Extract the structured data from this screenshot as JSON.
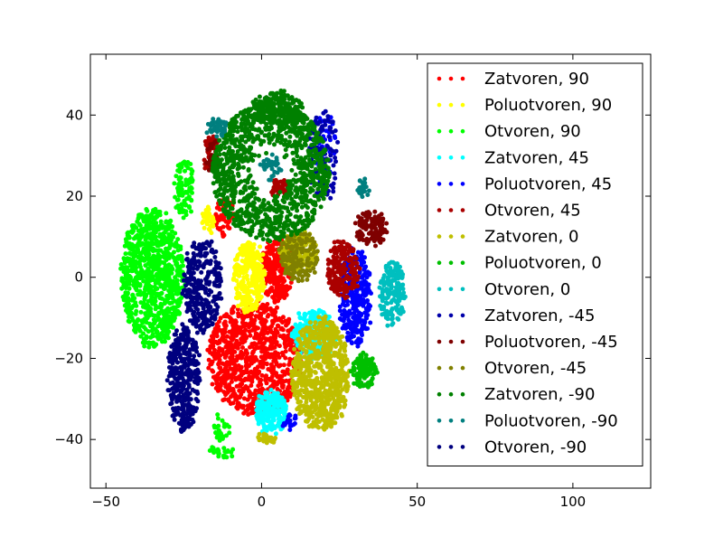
{
  "chart_data": {
    "type": "scatter",
    "title": "",
    "xlabel": "",
    "ylabel": "",
    "xlim": [
      -55,
      125
    ],
    "ylim": [
      -52,
      55
    ],
    "x_ticks": [
      -50,
      0,
      50,
      100
    ],
    "y_ticks": [
      -40,
      -20,
      0,
      20,
      40
    ],
    "x_tick_labels": [
      "−50",
      "0",
      "50",
      "100"
    ],
    "y_tick_labels": [
      "−40",
      "−20",
      "0",
      "20",
      "40"
    ],
    "grid": false,
    "legend_position": "upper right",
    "series": [
      {
        "name": "Zatvoren, 90",
        "color": "#ff0000",
        "clusters": [
          {
            "cx": -2,
            "cy": -20,
            "rx": 15,
            "ry": 14,
            "n": 900
          },
          {
            "cx": 5,
            "cy": 2,
            "rx": 5,
            "ry": 8,
            "n": 250
          },
          {
            "cx": -12,
            "cy": 15,
            "rx": 3,
            "ry": 5,
            "n": 60
          }
        ]
      },
      {
        "name": "Poluotvoren, 90",
        "color": "#ffff00",
        "clusters": [
          {
            "cx": -4,
            "cy": 0,
            "rx": 5,
            "ry": 9,
            "n": 300
          },
          {
            "cx": -17,
            "cy": 14,
            "rx": 2,
            "ry": 3,
            "n": 40
          }
        ]
      },
      {
        "name": "Otvoren, 90",
        "color": "#00ff00",
        "clusters": [
          {
            "cx": -35,
            "cy": 0,
            "rx": 10,
            "ry": 17,
            "n": 900
          },
          {
            "cx": -25,
            "cy": 22,
            "rx": 3,
            "ry": 7,
            "n": 100
          },
          {
            "cx": -13,
            "cy": -37,
            "rx": 3,
            "ry": 3,
            "n": 30
          },
          {
            "cx": -13,
            "cy": -43,
            "rx": 4,
            "ry": 1,
            "n": 25
          }
        ]
      },
      {
        "name": "Zatvoren, 45",
        "color": "#00ffff",
        "clusters": [
          {
            "cx": 3,
            "cy": -33,
            "rx": 5,
            "ry": 5,
            "n": 200
          },
          {
            "cx": 17,
            "cy": -14,
            "rx": 7,
            "ry": 6,
            "n": 250
          }
        ]
      },
      {
        "name": "Poluotvoren, 45",
        "color": "#0000ff",
        "clusters": [
          {
            "cx": 30,
            "cy": -5,
            "rx": 5,
            "ry": 12,
            "n": 300
          },
          {
            "cx": 20,
            "cy": 32,
            "rx": 4,
            "ry": 8,
            "n": 60
          },
          {
            "cx": 9,
            "cy": -36,
            "rx": 2,
            "ry": 2,
            "n": 20
          }
        ]
      },
      {
        "name": "Otvoren, 45",
        "color": "#aa0000",
        "clusters": [
          {
            "cx": 26,
            "cy": 2,
            "rx": 5,
            "ry": 7,
            "n": 200
          },
          {
            "cx": -16,
            "cy": 33,
            "rx": 2,
            "ry": 2,
            "n": 35
          },
          {
            "cx": -16,
            "cy": 28,
            "rx": 2,
            "ry": 2,
            "n": 30
          },
          {
            "cx": 6,
            "cy": 22,
            "rx": 3,
            "ry": 2,
            "n": 40
          }
        ]
      },
      {
        "name": "Zatvoren, 0",
        "color": "#bfbf00",
        "clusters": [
          {
            "cx": 19,
            "cy": -24,
            "rx": 9,
            "ry": 14,
            "n": 700
          },
          {
            "cx": 12,
            "cy": 6,
            "rx": 6,
            "ry": 5,
            "n": 180
          },
          {
            "cx": 2,
            "cy": -40,
            "rx": 3,
            "ry": 1,
            "n": 30
          }
        ]
      },
      {
        "name": "Poluotvoren, 0",
        "color": "#00bf00",
        "clusters": [
          {
            "cx": 33,
            "cy": -23,
            "rx": 4,
            "ry": 4,
            "n": 120
          }
        ]
      },
      {
        "name": "Otvoren, 0",
        "color": "#00bfbf",
        "clusters": [
          {
            "cx": 42,
            "cy": -4,
            "rx": 4,
            "ry": 8,
            "n": 160
          }
        ]
      },
      {
        "name": "Zatvoren, -45",
        "color": "#0000aa",
        "clusters": [
          {
            "cx": 20,
            "cy": 30,
            "rx": 5,
            "ry": 11,
            "n": 90
          }
        ]
      },
      {
        "name": "Poluotvoren, -45",
        "color": "#7f0000",
        "clusters": [
          {
            "cx": 35,
            "cy": 12,
            "rx": 5,
            "ry": 4,
            "n": 120
          },
          {
            "cx": -16,
            "cy": 30,
            "rx": 2,
            "ry": 4,
            "n": 30
          }
        ]
      },
      {
        "name": "Otvoren, -45",
        "color": "#808000",
        "clusters": [
          {
            "cx": 12,
            "cy": 5,
            "rx": 6,
            "ry": 6,
            "n": 150
          }
        ]
      },
      {
        "name": "Zatvoren, -90",
        "color": "#008000",
        "clusters": [
          {
            "type": "ring",
            "cx": 3,
            "cy": 26,
            "r0": 5,
            "r1": 18,
            "n": 1100
          },
          {
            "cx": 5,
            "cy": 42,
            "rx": 8,
            "ry": 4,
            "n": 150
          }
        ]
      },
      {
        "name": "Poluotvoren, -90",
        "color": "#007f7f",
        "clusters": [
          {
            "cx": -14,
            "cy": 37,
            "rx": 3,
            "ry": 2,
            "n": 40
          },
          {
            "cx": 3,
            "cy": 27,
            "rx": 3,
            "ry": 3,
            "n": 40
          },
          {
            "cx": 33,
            "cy": 22,
            "rx": 2,
            "ry": 2,
            "n": 20
          }
        ]
      },
      {
        "name": "Otvoren, -90",
        "color": "#00007f",
        "clusters": [
          {
            "cx": -19,
            "cy": -2,
            "rx": 6,
            "ry": 12,
            "n": 300
          },
          {
            "cx": -25,
            "cy": -25,
            "rx": 5,
            "ry": 13,
            "n": 350
          }
        ]
      }
    ]
  }
}
